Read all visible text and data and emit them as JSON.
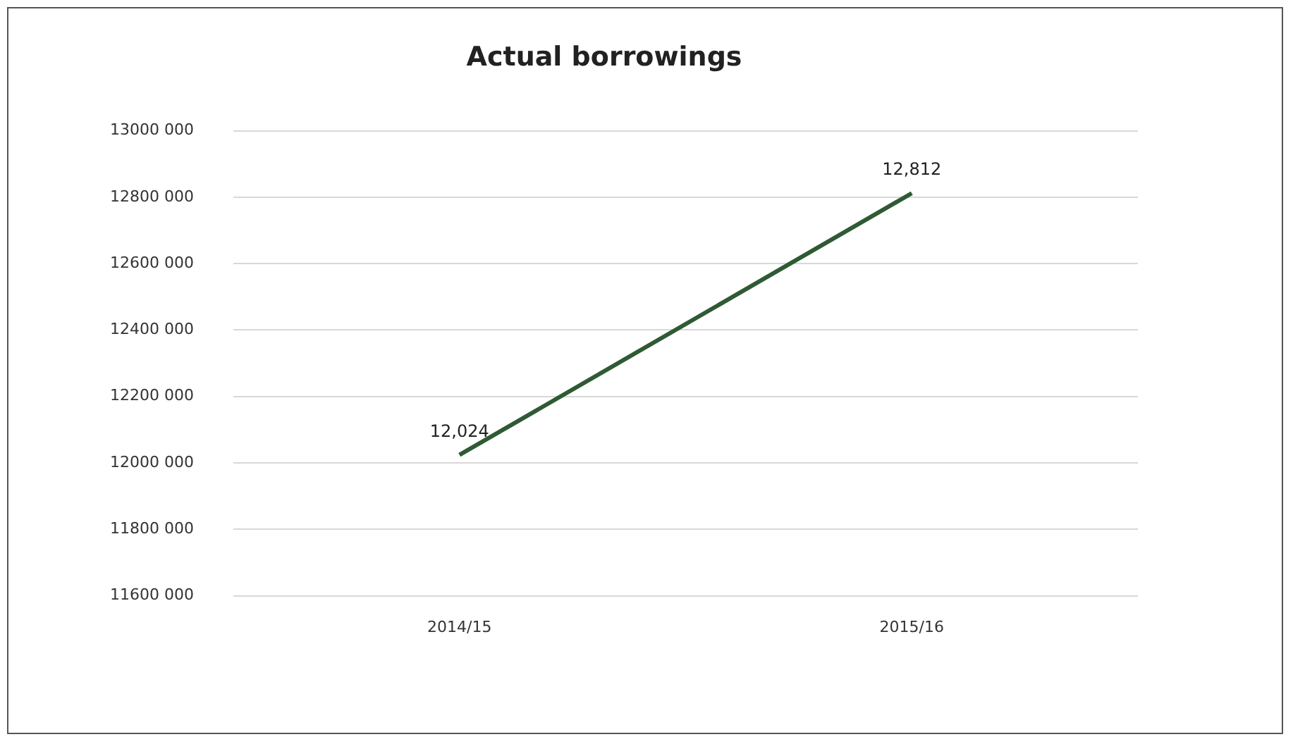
{
  "chart_data": {
    "type": "line",
    "title": "Actual borrowings",
    "categories": [
      "2014/15",
      "2015/16"
    ],
    "series": [
      {
        "color": "#2f5a34",
        "values": [
          12024000,
          12812000
        ]
      }
    ],
    "annotations": [
      {
        "text": "12,024",
        "x": "2014/15",
        "y": 12024000
      },
      {
        "text": "12,812",
        "x": "2015/16",
        "y": 12812000
      }
    ],
    "ylim": [
      11600000,
      13000000
    ],
    "yticks": [
      {
        "value": 11600000,
        "label": "11600 000"
      },
      {
        "value": 11800000,
        "label": "11800 000"
      },
      {
        "value": 12000000,
        "label": "12000 000"
      },
      {
        "value": 12200000,
        "label": "12200 000"
      },
      {
        "value": 12400000,
        "label": "12400 000"
      },
      {
        "value": 12600000,
        "label": "12600 000"
      },
      {
        "value": 12800000,
        "label": "12800 000"
      },
      {
        "value": 13000000,
        "label": "13000 000"
      }
    ],
    "grid": "y",
    "legend": false,
    "marker": "none",
    "line_style": "solid"
  }
}
